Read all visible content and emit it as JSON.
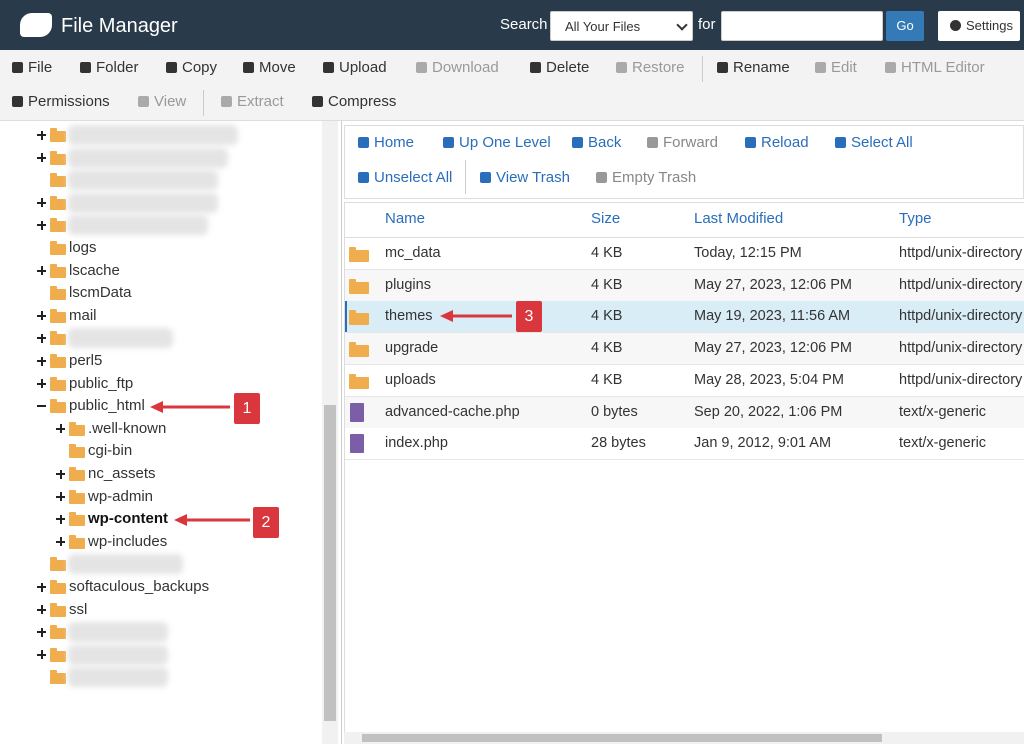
{
  "header": {
    "title": "File Manager",
    "search_label": "Search",
    "search_scope": "All Your Files",
    "for_label": "for",
    "go": "Go",
    "settings": "Settings"
  },
  "toolbar": {
    "row1": [
      "File",
      "Folder",
      "Copy",
      "Move",
      "Upload",
      "Download",
      "Delete",
      "Restore",
      "Rename",
      "Edit",
      "HTML Editor"
    ],
    "row2": [
      "Permissions",
      "View",
      "Extract",
      "Compress"
    ]
  },
  "tree": [
    "logs",
    "lscache",
    "lscmData",
    "mail",
    "perl5",
    "public_ftp",
    "public_html",
    ".well-known",
    "cgi-bin",
    "nc_assets",
    "wp-admin",
    "wp-content",
    "wp-includes",
    "softaculous_backups",
    "ssl"
  ],
  "nav": {
    "row1": [
      "Home",
      "Up One Level",
      "Back",
      "Forward",
      "Reload",
      "Select All"
    ],
    "row2": [
      "Unselect All",
      "View Trash",
      "Empty Trash"
    ]
  },
  "table": {
    "columns": [
      "Name",
      "Size",
      "Last Modified",
      "Type"
    ],
    "rows": [
      [
        "mc_data",
        "4 KB",
        "Today, 12:15 PM",
        "httpd/unix-directory"
      ],
      [
        "plugins",
        "4 KB",
        "May 27, 2023, 12:06 PM",
        "httpd/unix-directory"
      ],
      [
        "themes",
        "4 KB",
        "May 19, 2023, 11:56 AM",
        "httpd/unix-directory"
      ],
      [
        "upgrade",
        "4 KB",
        "May 27, 2023, 12:06 PM",
        "httpd/unix-directory"
      ],
      [
        "uploads",
        "4 KB",
        "May 28, 2023, 5:04 PM",
        "httpd/unix-directory"
      ],
      [
        "advanced-cache.php",
        "0 bytes",
        "Sep 20, 2022, 1:06 PM",
        "text/x-generic"
      ],
      [
        "index.php",
        "28 bytes",
        "Jan 9, 2012, 9:01 AM",
        "text/x-generic"
      ]
    ]
  },
  "annotations": [
    "1",
    "2",
    "3"
  ]
}
